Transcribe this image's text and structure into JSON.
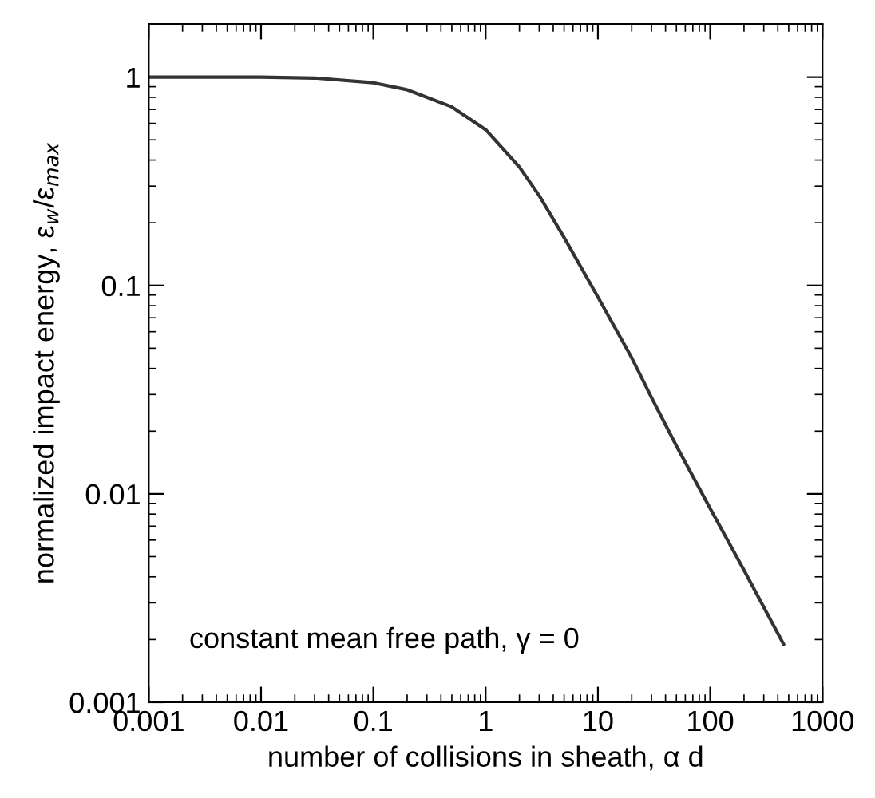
{
  "chart_data": {
    "type": "line",
    "xlabel": "number of collisions in sheath, α d",
    "ylabel": "normalized impact energy, ε$_{w}$/ε$_{max}$",
    "log": "xy",
    "xlim": [
      0.001,
      1000
    ],
    "ylim": [
      0.001,
      1.8
    ],
    "xticks": [
      0.001,
      0.01,
      0.1,
      1,
      10,
      100,
      1000
    ],
    "yticks": [
      0.001,
      0.01,
      0.1,
      1
    ],
    "annotations": [
      "constant mean free path, γ = 0"
    ],
    "grid": false,
    "legend": false,
    "marker": "none",
    "line_style": "solid",
    "series": [
      {
        "color": "#333333",
        "x": [
          0.001,
          0.01,
          0.03,
          0.1,
          0.2,
          0.5,
          1,
          2,
          3,
          5,
          10,
          20,
          30,
          50,
          100,
          200,
          450
        ],
        "values": [
          1,
          1,
          0.99,
          0.94,
          0.87,
          0.72,
          0.56,
          0.37,
          0.27,
          0.17,
          0.088,
          0.045,
          0.029,
          0.017,
          0.0085,
          0.0043,
          0.0019
        ]
      }
    ]
  }
}
